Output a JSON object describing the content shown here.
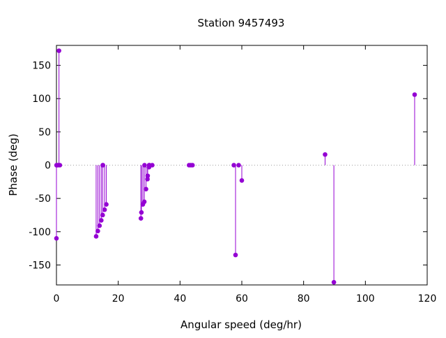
{
  "chart_data": {
    "type": "scatter",
    "style": "impulses-with-points",
    "title": "Station 9457493",
    "xlabel": "Angular speed (deg/hr)",
    "ylabel": "Phase (deg)",
    "xlim": [
      0,
      120
    ],
    "ylim": [
      -180,
      180
    ],
    "xticks": [
      0,
      20,
      40,
      60,
      80,
      100,
      120
    ],
    "yticks": [
      -150,
      -100,
      -50,
      0,
      50,
      100,
      150
    ],
    "grid": false,
    "zero_line": "dotted",
    "series": [
      {
        "color": "#9400d3",
        "points": [
          {
            "x": -0.1,
            "y": -110
          },
          {
            "x": 0.04,
            "y": 0
          },
          {
            "x": 0.08,
            "y": 0
          },
          {
            "x": 0.5,
            "y": 0
          },
          {
            "x": 0.82,
            "y": 172
          },
          {
            "x": 1.1,
            "y": 0
          },
          {
            "x": 12.85,
            "y": -107
          },
          {
            "x": 13.4,
            "y": -99
          },
          {
            "x": 13.94,
            "y": -91
          },
          {
            "x": 14.5,
            "y": -83
          },
          {
            "x": 14.96,
            "y": -75
          },
          {
            "x": 15.0,
            "y": 0
          },
          {
            "x": 15.04,
            "y": 0
          },
          {
            "x": 15.59,
            "y": -67
          },
          {
            "x": 16.14,
            "y": -59
          },
          {
            "x": 27.34,
            "y": -80
          },
          {
            "x": 27.5,
            "y": -71
          },
          {
            "x": 27.97,
            "y": -59
          },
          {
            "x": 28.44,
            "y": -55
          },
          {
            "x": 28.51,
            "y": 0
          },
          {
            "x": 28.99,
            "y": -36
          },
          {
            "x": 29.46,
            "y": -21
          },
          {
            "x": 29.53,
            "y": -16
          },
          {
            "x": 29.96,
            "y": -3
          },
          {
            "x": 30.0,
            "y": 0
          },
          {
            "x": 30.08,
            "y": 0
          },
          {
            "x": 31.0,
            "y": 0
          },
          {
            "x": 42.93,
            "y": 0
          },
          {
            "x": 43.48,
            "y": 0
          },
          {
            "x": 44.03,
            "y": 0
          },
          {
            "x": 57.42,
            "y": 0
          },
          {
            "x": 57.97,
            "y": -135
          },
          {
            "x": 58.98,
            "y": 0
          },
          {
            "x": 60.0,
            "y": -23
          },
          {
            "x": 86.95,
            "y": 16
          },
          {
            "x": 89.8,
            "y": -176
          },
          {
            "x": 115.94,
            "y": 106
          }
        ]
      }
    ]
  }
}
